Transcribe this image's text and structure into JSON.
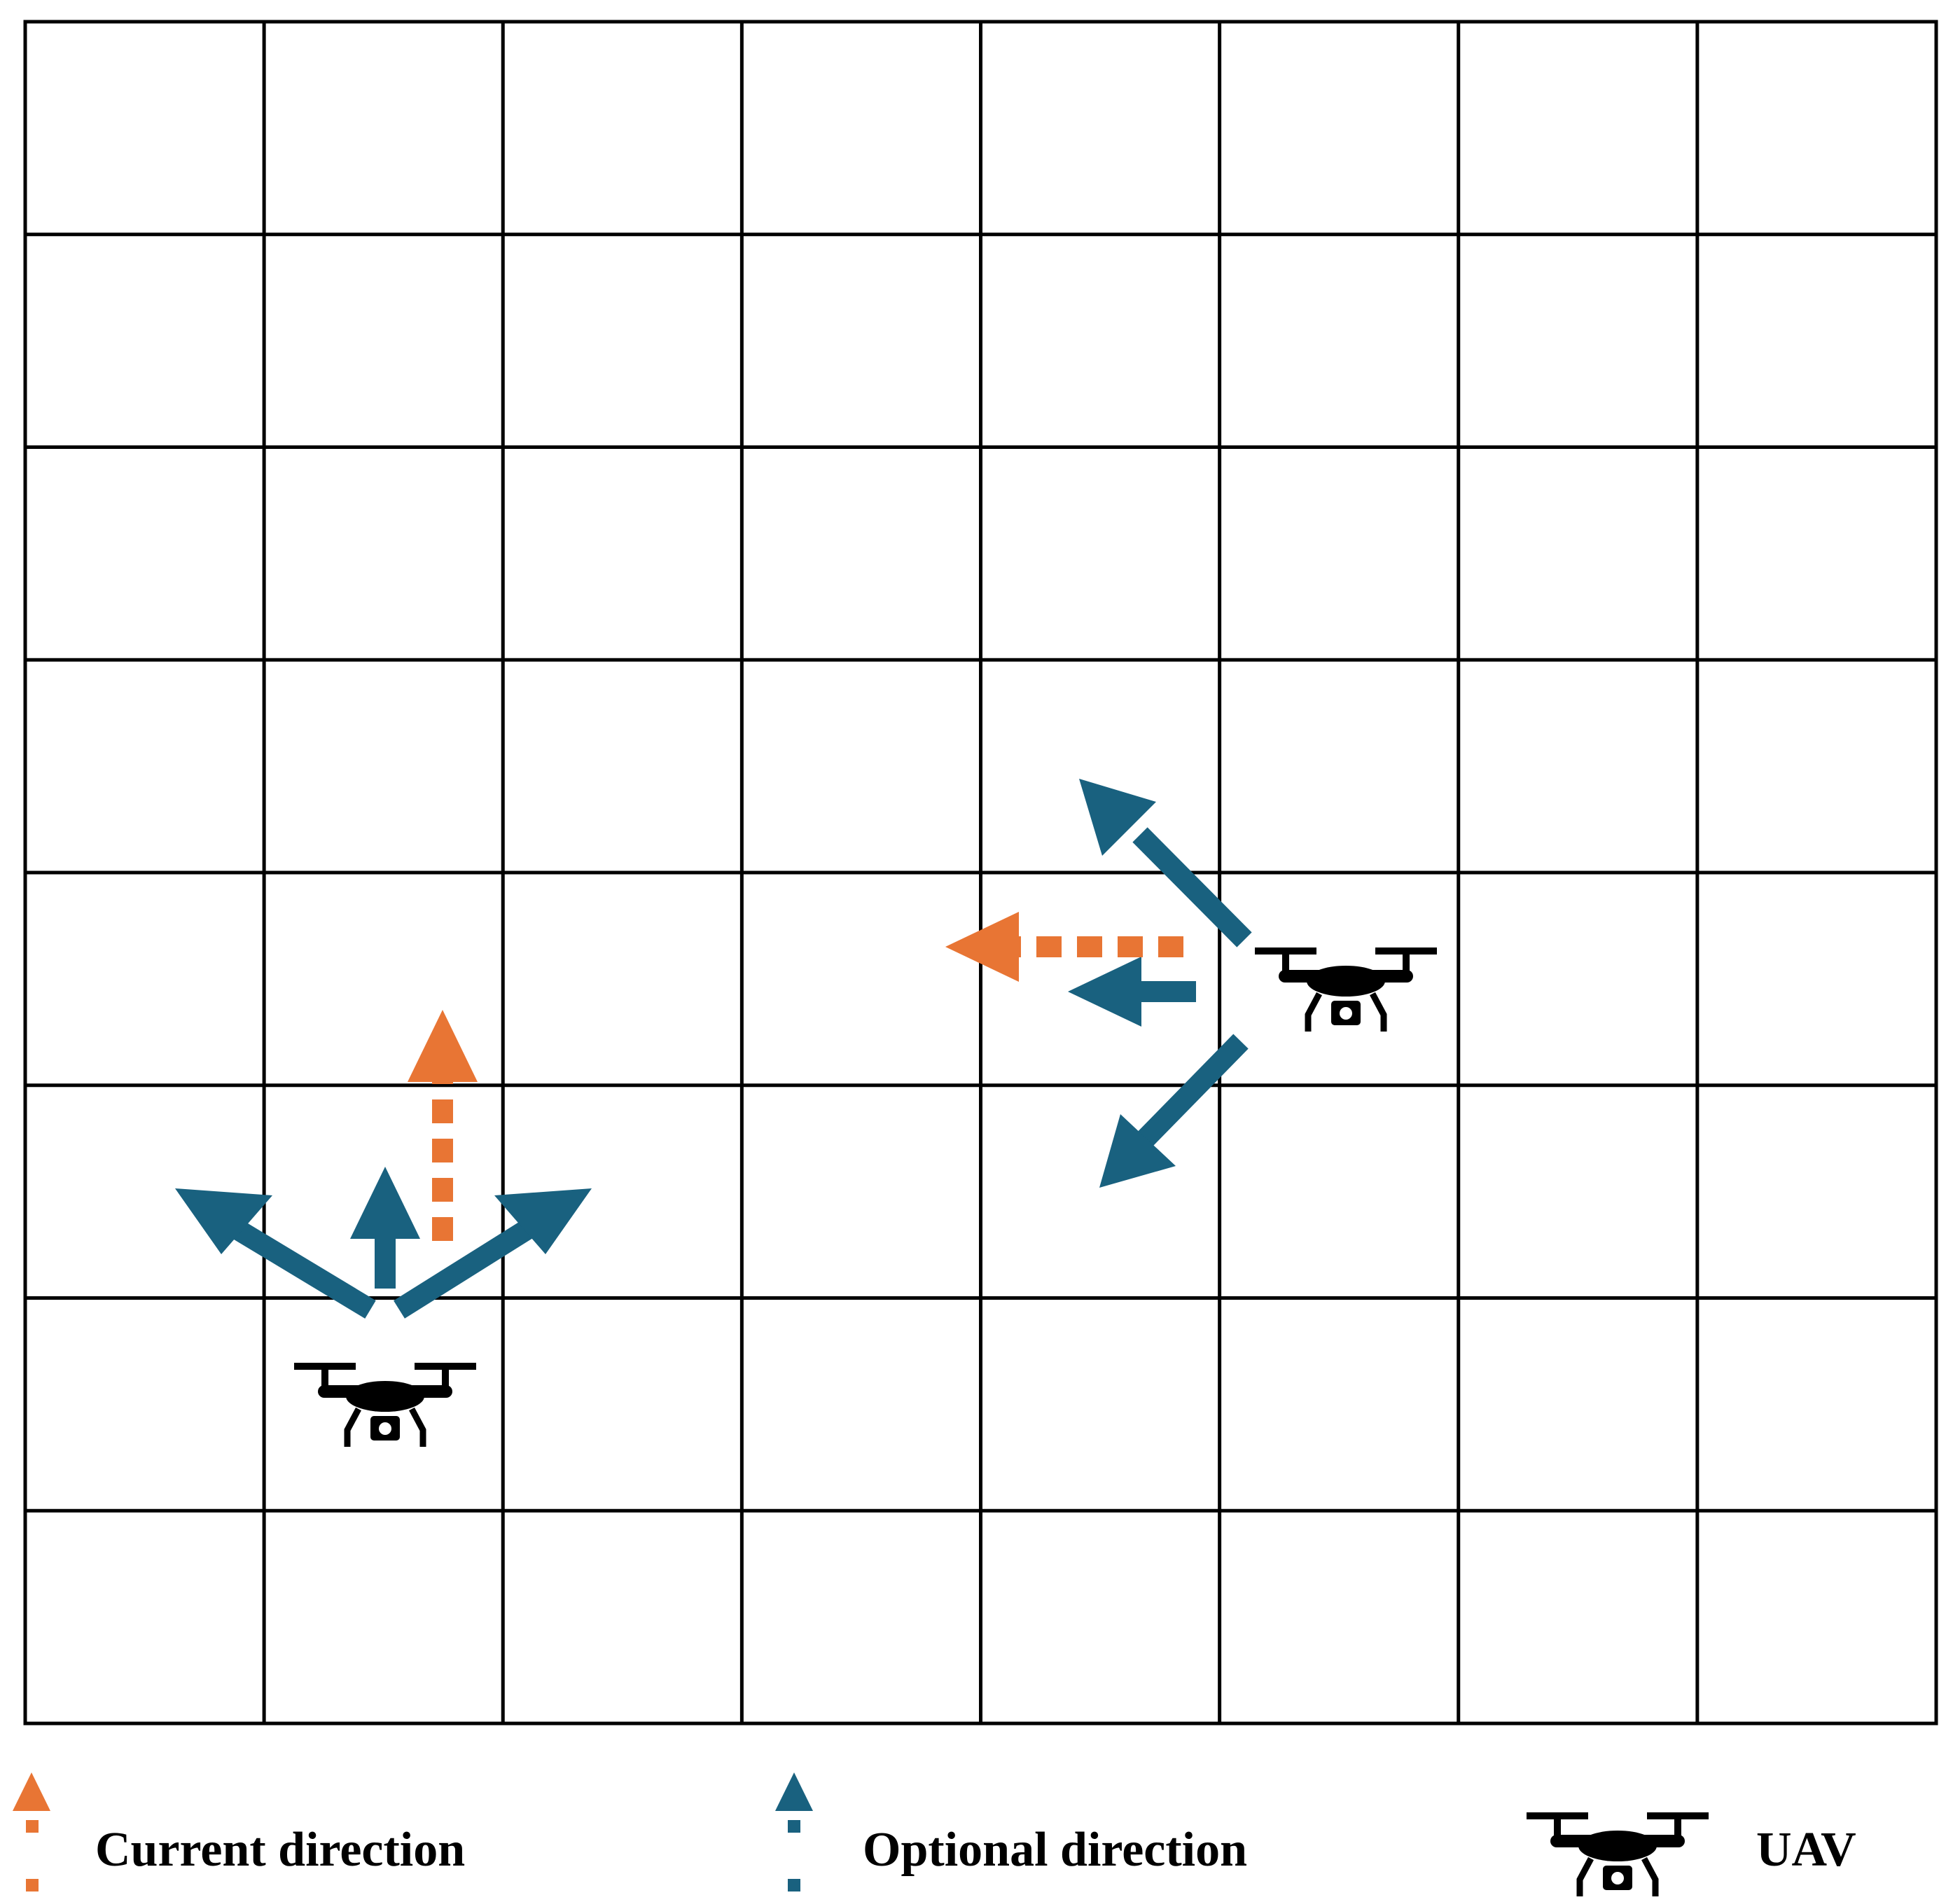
{
  "grid": {
    "columns": 8,
    "rows": 8
  },
  "colors": {
    "current": "#E87534",
    "optional": "#19617F",
    "uav": "#000000",
    "grid_line": "#000000"
  },
  "uavs": [
    {
      "id": "uav-1",
      "current_direction": "up",
      "optional_directions": [
        "up-left",
        "up",
        "up-right"
      ]
    },
    {
      "id": "uav-2",
      "current_direction": "left",
      "optional_directions": [
        "up-left",
        "left",
        "down-left"
      ]
    }
  ],
  "legend": {
    "current_label": "Current direction",
    "optional_label": "Optional direction",
    "uav_label": "UAV"
  }
}
